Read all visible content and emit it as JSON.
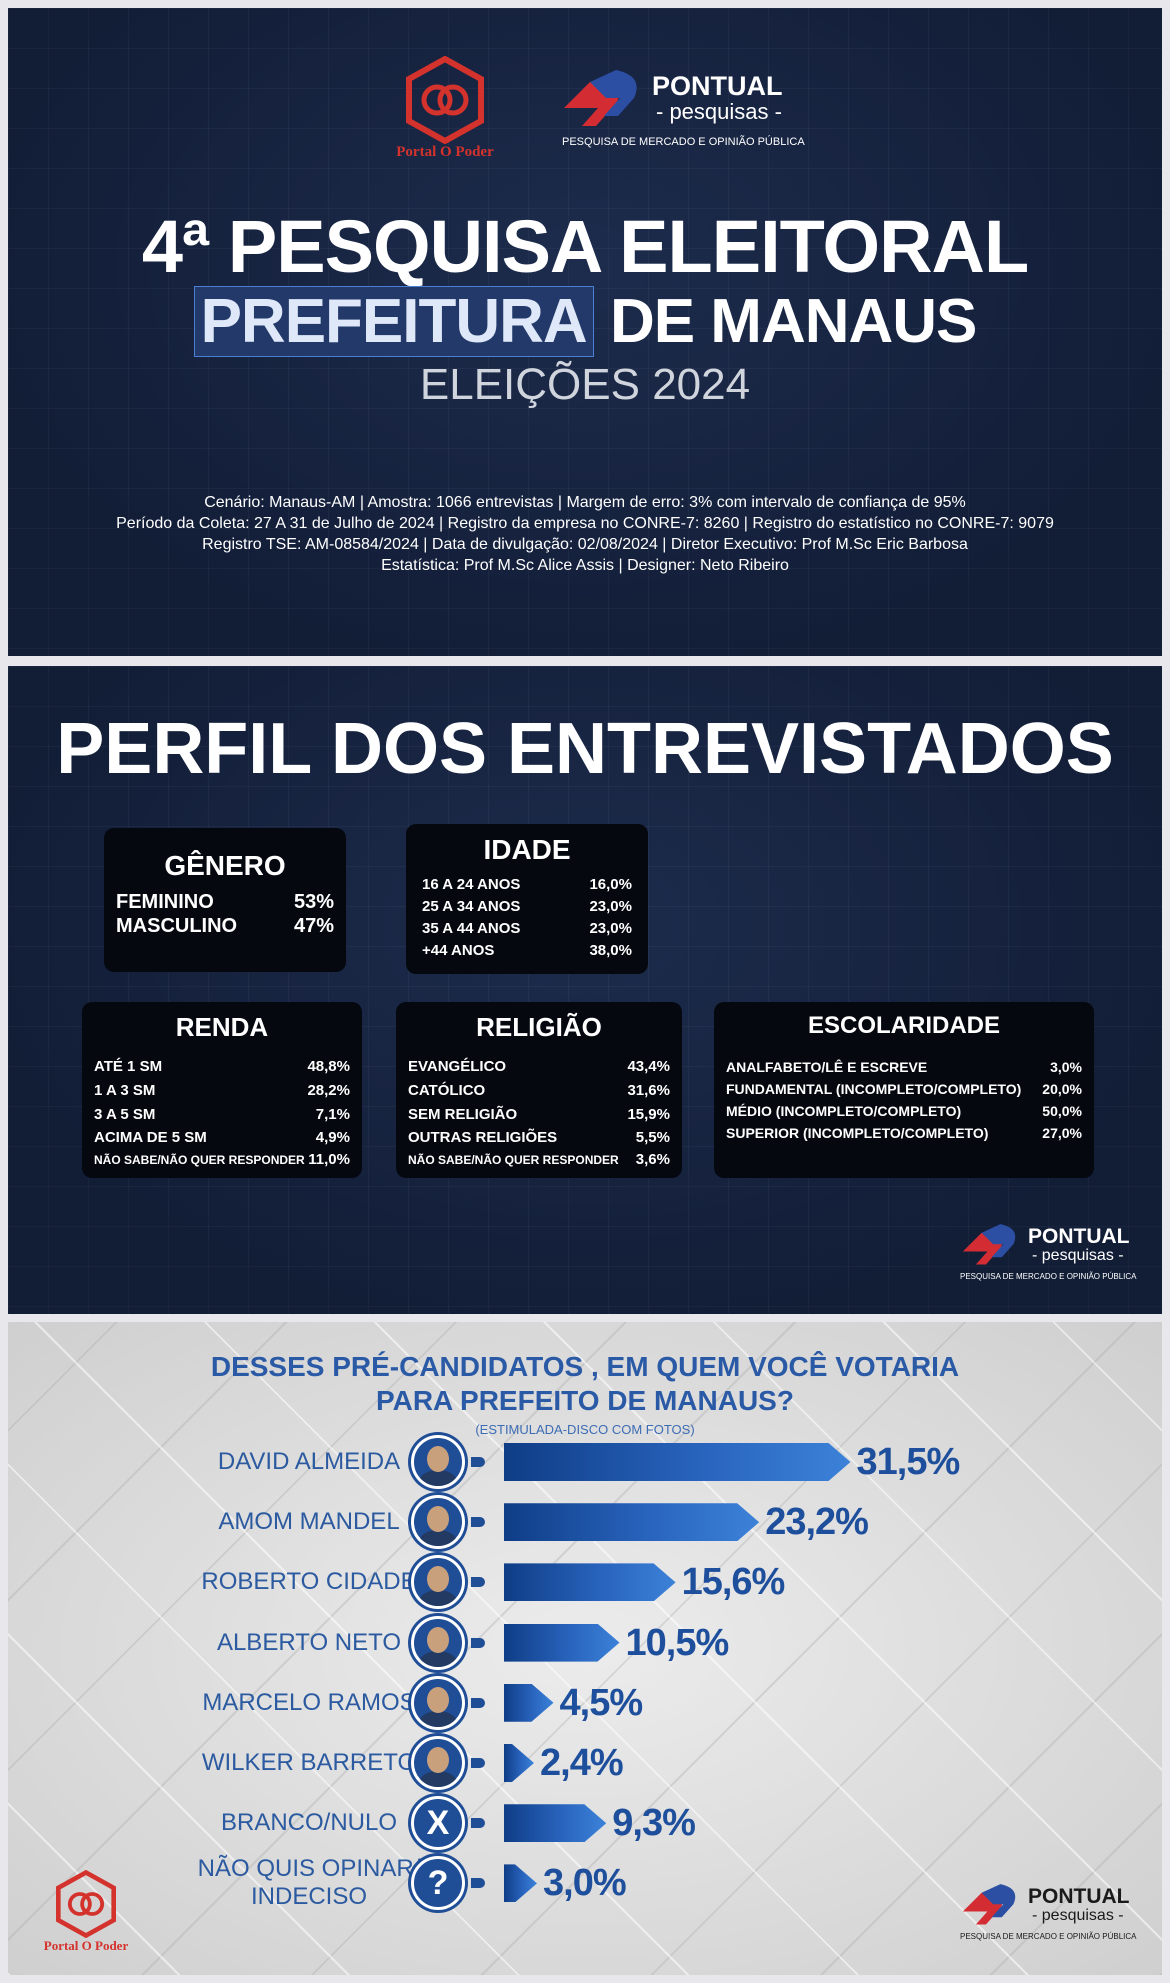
{
  "logos": {
    "portal_caption": "Portal O Poder",
    "pontual_word": "PONTUAL",
    "pontual_sub": "- pesquisas -",
    "pontual_tag": "PESQUISA DE MERCADO E OPINIÃO PÚBLICA"
  },
  "cover": {
    "title_line1": "4ª PESQUISA ELEITORAL",
    "title_highlight": "PREFEITURA",
    "title_rest": "DE MANAUS",
    "title_line3": "ELEIÇÕES 2024",
    "meta": [
      "Cenário: Manaus-AM | Amostra: 1066 entrevistas | Margem de erro: 3% com intervalo de confiança de 95%",
      "Período da Coleta: 27 A 31 de Julho de 2024 | Registro da empresa no CONRE-7: 8260 | Registro do estatístico no CONRE-7: 9079",
      "Registro TSE: AM-08584/2024 | Data de divulgação: 02/08/2024 | Diretor Executivo: Prof M.Sc Eric Barbosa",
      "Estatística: Prof M.Sc Alice Assis | Designer: Neto Ribeiro"
    ]
  },
  "perfil": {
    "title": "PERFIL DOS ENTREVISTADOS",
    "genero": {
      "title": "GÊNERO",
      "rows": [
        [
          "FEMININO",
          "53%"
        ],
        [
          "MASCULINO",
          "47%"
        ]
      ]
    },
    "idade": {
      "title": "IDADE",
      "rows": [
        [
          "16 A 24 ANOS",
          "16,0%"
        ],
        [
          "25 A 34 ANOS",
          "23,0%"
        ],
        [
          "35 A 44 ANOS",
          "23,0%"
        ],
        [
          "+44 ANOS",
          "38,0%"
        ]
      ]
    },
    "renda": {
      "title": "RENDA",
      "rows": [
        [
          "ATÉ 1 SM",
          "48,8%"
        ],
        [
          "1 A 3 SM",
          "28,2%"
        ],
        [
          "3 A 5 SM",
          "7,1%"
        ],
        [
          "ACIMA DE 5 SM",
          "4,9%"
        ],
        [
          "NÃO SABE/NÃO QUER RESPONDER",
          "11,0%"
        ]
      ]
    },
    "religiao": {
      "title": "RELIGIÃO",
      "rows": [
        [
          "EVANGÉLICO",
          "43,4%"
        ],
        [
          "CATÓLICO",
          "31,6%"
        ],
        [
          "SEM RELIGIÃO",
          "15,9%"
        ],
        [
          "OUTRAS RELIGIÕES",
          "5,5%"
        ],
        [
          "NÃO SABE/NÃO QUER RESPONDER",
          "3,6%"
        ]
      ]
    },
    "escolaridade": {
      "title": "ESCOLARIDADE",
      "rows": [
        [
          "ANALFABETO/LÊ E ESCREVE",
          "3,0%"
        ],
        [
          "FUNDAMENTAL (INCOMPLETO/COMPLETO)",
          "20,0%"
        ],
        [
          "MÉDIO (INCOMPLETO/COMPLETO)",
          "50,0%"
        ],
        [
          "SUPERIOR (INCOMPLETO/COMPLETO)",
          "27,0%"
        ]
      ]
    }
  },
  "poll": {
    "question_line1": "DESSES PRÉ-CANDIDATOS , EM QUEM VOCÊ VOTARIA",
    "question_line2": "PARA PREFEITO DE MANAUS?",
    "subtitle": "(ESTIMULADA-DISCO COM FOTOS)"
  },
  "chart_data": {
    "type": "bar",
    "orientation": "horizontal",
    "title": "DESSES PRÉ-CANDIDATOS , EM QUEM VOCÊ VOTARIA PARA PREFEITO DE MANAUS?",
    "categories": [
      "DAVID ALMEIDA",
      "AMOM MANDEL",
      "ROBERTO CIDADE",
      "ALBERTO NETO",
      "MARCELO RAMOS",
      "WILKER BARRETO",
      "BRANCO/NULO",
      "NÃO QUIS OPINAR/ INDECISO"
    ],
    "values": [
      31.5,
      23.2,
      15.6,
      10.5,
      4.5,
      2.4,
      9.3,
      3.0
    ],
    "value_labels": [
      "31,5%",
      "23,2%",
      "15,6%",
      "10,5%",
      "4,5%",
      "2,4%",
      "9,3%",
      "3,0%"
    ],
    "avatar_symbols": [
      "",
      "",
      "",
      "",
      "",
      "",
      "X",
      "?"
    ],
    "bar_color": "#1f56a8"
  }
}
